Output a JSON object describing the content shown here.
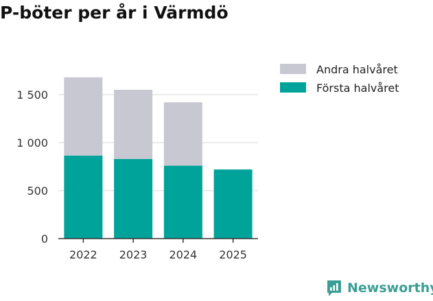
{
  "chart_data": {
    "type": "bar",
    "stacked": true,
    "title": "P-böter per år i Värmdö",
    "categories": [
      "2022",
      "2023",
      "2024",
      "2025"
    ],
    "series": [
      {
        "name": "Första halvåret",
        "color": "#00a39a",
        "values": [
          865,
          830,
          760,
          720
        ]
      },
      {
        "name": "Andra halvåret",
        "color": "#c8c8d2",
        "values": [
          815,
          720,
          660,
          0
        ]
      }
    ],
    "legend": [
      "Andra halvåret",
      "Första halvåret"
    ],
    "yticks": [
      0,
      500,
      1000,
      1500
    ],
    "ytick_labels": [
      "0",
      "500",
      "1 000",
      "1 500"
    ],
    "ylim": [
      0,
      1800
    ],
    "xlabel": "",
    "ylabel": "",
    "grid": true
  },
  "brand": {
    "name": "Newsworthy",
    "icon": "newsworthy-logo-icon"
  }
}
